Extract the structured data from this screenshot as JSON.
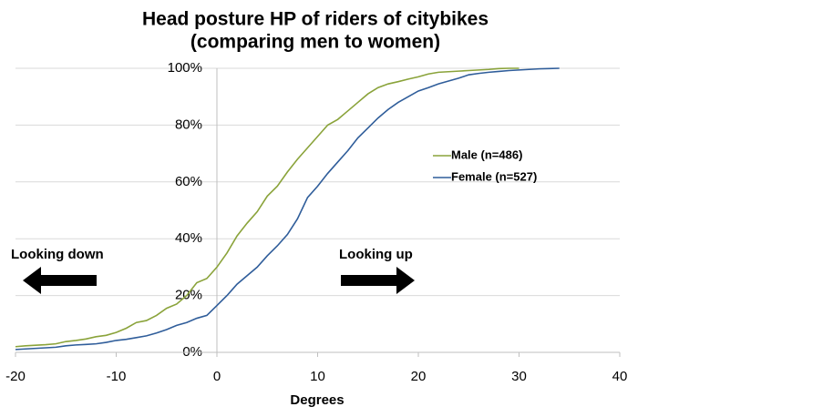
{
  "chart_data": {
    "type": "line",
    "title": [
      "Head posture HP of riders of citybikes",
      "(comparing men to women)"
    ],
    "x_label": "Degrees",
    "annotations": [
      "Looking down",
      "Looking up"
    ],
    "x": [
      -20,
      -19,
      -18,
      -17,
      -16,
      -15,
      -14,
      -13,
      -12,
      -11,
      -10,
      -9,
      -8,
      -7,
      -6,
      -5,
      -4,
      -3,
      -2,
      -1,
      0,
      1,
      2,
      3,
      4,
      5,
      6,
      7,
      8,
      9,
      10,
      11,
      12,
      13,
      14,
      15,
      16,
      17,
      18,
      19,
      20,
      21,
      22,
      23,
      24,
      25,
      26,
      27,
      28,
      29,
      30,
      31,
      32,
      33,
      34
    ],
    "series": [
      {
        "name": "Male (n=486)",
        "color": "#8aa33a",
        "values": [
          2,
          2.3,
          2.5,
          2.7,
          3,
          3.8,
          4.2,
          4.7,
          5.5,
          6,
          7,
          8.5,
          10.5,
          11.2,
          13,
          15.5,
          17,
          20,
          24.5,
          26,
          30,
          35,
          41,
          45.5,
          49.5,
          55,
          58.5,
          63.5,
          68,
          72,
          76,
          80,
          82,
          85,
          88,
          91,
          93.2,
          94.5,
          95.3,
          96.2,
          97,
          98,
          98.6,
          98.8,
          99,
          99.2,
          99.4,
          99.6,
          99.9,
          100,
          100,
          null,
          null,
          null,
          null
        ]
      },
      {
        "name": "Female (n=527)",
        "color": "#2f5d9a",
        "values": [
          1,
          1.2,
          1.4,
          1.6,
          1.8,
          2.3,
          2.6,
          2.8,
          3,
          3.5,
          4.2,
          4.6,
          5.2,
          5.8,
          6.8,
          8,
          9.5,
          10.5,
          12,
          13,
          16.5,
          20,
          24,
          27,
          30,
          34,
          37.5,
          41.5,
          47,
          54.5,
          58.5,
          63,
          67,
          71,
          75.5,
          79,
          82.5,
          85.5,
          88,
          90,
          92,
          93.2,
          94.5,
          95.5,
          96.5,
          97.7,
          98.2,
          98.6,
          98.9,
          99.2,
          99.4,
          99.6,
          99.8,
          99.9,
          100
        ]
      }
    ],
    "xlim": [
      -20,
      40
    ],
    "xticks": [
      -20,
      -10,
      0,
      10,
      20,
      30,
      40
    ],
    "ylim": [
      0,
      100
    ],
    "yticks": [
      {
        "value": 0,
        "label": "0%"
      },
      {
        "value": 20,
        "label": "20%"
      },
      {
        "value": 40,
        "label": "40%"
      },
      {
        "value": 60,
        "label": "60%"
      },
      {
        "value": 80,
        "label": "80%"
      },
      {
        "value": 100,
        "label": "100%"
      }
    ],
    "grid": true,
    "legend": "right"
  }
}
